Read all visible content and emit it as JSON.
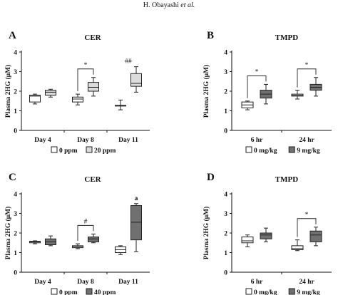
{
  "header": {
    "text_plain": "H. Obayashi ",
    "text_italic": "et al."
  },
  "colors": {
    "white_box": "#ffffff",
    "light_gray_box": "#dcdcdc",
    "dark_gray_box": "#707070",
    "stroke": "#222222"
  },
  "chart_data": [
    {
      "panel": "A",
      "title": "CER",
      "type": "box",
      "ylabel": "Plasma 2HG (μM)",
      "ylim": [
        0,
        4
      ],
      "yticks": [
        0,
        1,
        2,
        3,
        4
      ],
      "categories": [
        "Day 4",
        "Day 8",
        "Day 11"
      ],
      "series": [
        {
          "name": "0 ppm",
          "fill": "white",
          "boxes": [
            {
              "min": 1.35,
              "q1": 1.45,
              "median": 1.75,
              "q3": 1.8,
              "max": 1.85
            },
            {
              "min": 1.3,
              "q1": 1.45,
              "median": 1.6,
              "q3": 1.7,
              "max": 1.85
            },
            {
              "min": 1.05,
              "q1": 1.25,
              "median": 1.25,
              "q3": 1.28,
              "max": 1.55
            }
          ]
        },
        {
          "name": "20 ppm",
          "fill": "light",
          "boxes": [
            {
              "min": 1.7,
              "q1": 1.8,
              "median": 1.95,
              "q3": 2.05,
              "max": 2.1
            },
            {
              "min": 1.75,
              "q1": 2.0,
              "median": 2.2,
              "q3": 2.45,
              "max": 2.7
            },
            {
              "min": 1.95,
              "q1": 2.25,
              "median": 2.4,
              "q3": 2.9,
              "max": 3.25
            }
          ]
        }
      ],
      "annotations": [
        {
          "category": 1,
          "label": "*",
          "bracket": true
        },
        {
          "category": 2,
          "label": "##",
          "bracket": false
        }
      ]
    },
    {
      "panel": "B",
      "title": "TMPD",
      "type": "box",
      "ylabel": "Plasma 2HG (μM)",
      "ylim": [
        0,
        4
      ],
      "yticks": [
        0,
        1,
        2,
        3,
        4
      ],
      "categories": [
        "6 hr",
        "24 hr"
      ],
      "series": [
        {
          "name": "0 mg/kg",
          "fill": "white",
          "boxes": [
            {
              "min": 1.05,
              "q1": 1.15,
              "median": 1.3,
              "q3": 1.45,
              "max": 1.5
            },
            {
              "min": 1.6,
              "q1": 1.75,
              "median": 1.8,
              "q3": 1.85,
              "max": 2.05
            }
          ]
        },
        {
          "name": "9 mg/kg",
          "fill": "dark",
          "boxes": [
            {
              "min": 1.35,
              "q1": 1.65,
              "median": 1.85,
              "q3": 2.05,
              "max": 2.35
            },
            {
              "min": 1.75,
              "q1": 2.05,
              "median": 2.2,
              "q3": 2.35,
              "max": 2.7
            }
          ]
        }
      ],
      "annotations": [
        {
          "category": 0,
          "label": "*",
          "bracket": true
        },
        {
          "category": 1,
          "label": "*",
          "bracket": true
        }
      ]
    },
    {
      "panel": "C",
      "title": "CER",
      "type": "box",
      "ylabel": "Plasma 2HG (μM)",
      "ylim": [
        0,
        4
      ],
      "yticks": [
        0,
        1,
        2,
        3,
        4
      ],
      "categories": [
        "Day 4",
        "Day 8",
        "Day 11"
      ],
      "series": [
        {
          "name": "0 ppm",
          "fill": "white",
          "boxes": [
            {
              "min": 1.45,
              "q1": 1.5,
              "median": 1.55,
              "q3": 1.58,
              "max": 1.6
            },
            {
              "min": 1.2,
              "q1": 1.25,
              "median": 1.3,
              "q3": 1.35,
              "max": 1.45
            },
            {
              "min": 0.9,
              "q1": 1.0,
              "median": 1.15,
              "q3": 1.3,
              "max": 1.35
            }
          ]
        },
        {
          "name": "40 ppm",
          "fill": "dark",
          "boxes": [
            {
              "min": 1.35,
              "q1": 1.4,
              "median": 1.55,
              "q3": 1.7,
              "max": 1.85
            },
            {
              "min": 1.5,
              "q1": 1.55,
              "median": 1.7,
              "q3": 1.8,
              "max": 1.95
            },
            {
              "min": 1.05,
              "q1": 1.65,
              "median": 2.55,
              "q3": 3.4,
              "max": 3.5
            }
          ]
        }
      ],
      "annotations": [
        {
          "category": 1,
          "label": "#",
          "bracket": true
        },
        {
          "category": 2,
          "label": "a",
          "bracket": false
        }
      ]
    },
    {
      "panel": "D",
      "title": "TMPD",
      "type": "box",
      "ylabel": "Plasma 2HG (μM)",
      "ylim": [
        0,
        4
      ],
      "yticks": [
        0,
        1,
        2,
        3,
        4
      ],
      "categories": [
        "6 hr",
        "24 hr"
      ],
      "series": [
        {
          "name": "0 mg/kg",
          "fill": "white",
          "boxes": [
            {
              "min": 1.3,
              "q1": 1.5,
              "median": 1.6,
              "q3": 1.8,
              "max": 1.9
            },
            {
              "min": 1.1,
              "q1": 1.15,
              "median": 1.2,
              "q3": 1.35,
              "max": 1.65
            }
          ]
        },
        {
          "name": "9 mg/kg",
          "fill": "dark",
          "boxes": [
            {
              "min": 1.55,
              "q1": 1.7,
              "median": 1.9,
              "q3": 2.0,
              "max": 2.25
            },
            {
              "min": 1.35,
              "q1": 1.55,
              "median": 1.9,
              "q3": 2.1,
              "max": 2.3
            }
          ]
        }
      ],
      "annotations": [
        {
          "category": 1,
          "label": "*",
          "bracket": true
        }
      ]
    }
  ]
}
